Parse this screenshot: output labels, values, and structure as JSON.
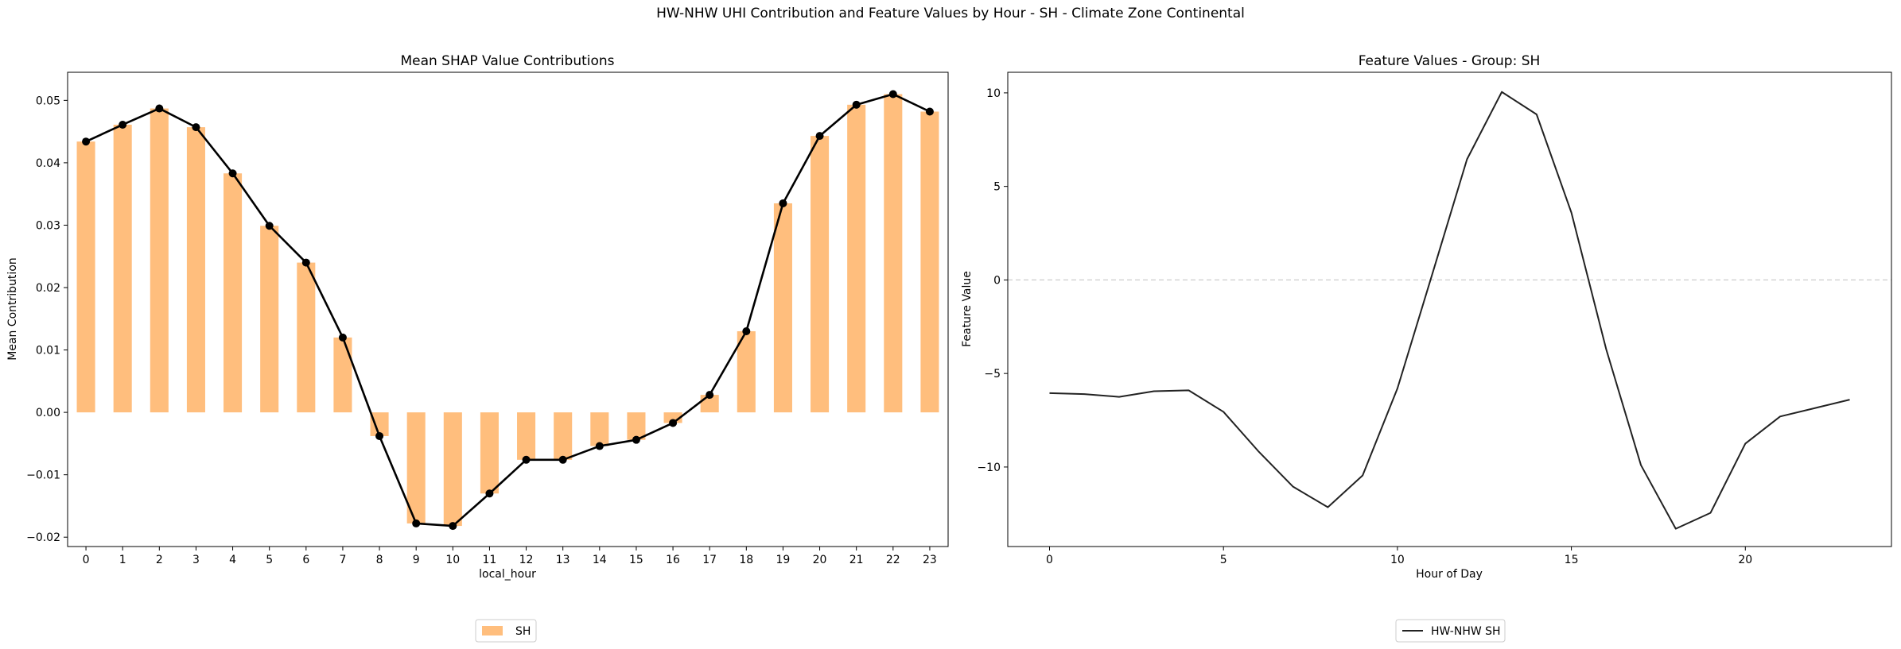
{
  "figure": {
    "suptitle": "HW-NHW UHI Contribution and Feature Values by Hour - SH - Climate Zone Continental"
  },
  "chart_data": [
    {
      "type": "bar",
      "title": "Mean SHAP Value Contributions",
      "xlabel": "local_hour",
      "ylabel": "Mean Contribution",
      "categories": [
        "0",
        "1",
        "2",
        "3",
        "4",
        "5",
        "6",
        "7",
        "8",
        "9",
        "10",
        "11",
        "12",
        "13",
        "14",
        "15",
        "16",
        "17",
        "18",
        "19",
        "20",
        "21",
        "22",
        "23"
      ],
      "series": [
        {
          "name": "SH",
          "color": "#ffbe7d",
          "values": [
            0.0434,
            0.0461,
            0.0487,
            0.0457,
            0.0383,
            0.0299,
            0.024,
            0.012,
            -0.0038,
            -0.0178,
            -0.0182,
            -0.013,
            -0.0076,
            -0.0076,
            -0.0054,
            -0.0044,
            -0.0017,
            0.0028,
            0.013,
            0.0335,
            0.0443,
            0.0493,
            0.051,
            0.0482
          ]
        }
      ],
      "overlay_line": {
        "type": "line",
        "color": "#000000",
        "marker": "circle",
        "values": [
          0.0434,
          0.0461,
          0.0487,
          0.0457,
          0.0383,
          0.0299,
          0.024,
          0.012,
          -0.0038,
          -0.0178,
          -0.0182,
          -0.013,
          -0.0076,
          -0.0076,
          -0.0054,
          -0.0044,
          -0.0017,
          0.0028,
          0.013,
          0.0335,
          0.0443,
          0.0493,
          0.051,
          0.0482
        ]
      },
      "ylim": [
        -0.0215,
        0.0545
      ],
      "yticks": [
        -0.02,
        -0.01,
        0.0,
        0.01,
        0.02,
        0.03,
        0.04,
        0.05
      ],
      "ytick_labels": [
        "−0.02",
        "−0.01",
        "0.00",
        "0.01",
        "0.02",
        "0.03",
        "0.04",
        "0.05"
      ],
      "legend": {
        "placement": "below",
        "labels": [
          "SH"
        ]
      }
    },
    {
      "type": "line",
      "title": "Feature Values - Group: SH",
      "xlabel": "Hour of Day",
      "ylabel": "Feature Value",
      "x": [
        0,
        1,
        2,
        3,
        4,
        5,
        6,
        7,
        8,
        9,
        10,
        11,
        12,
        13,
        14,
        15,
        16,
        17,
        18,
        19,
        20,
        21,
        22,
        23
      ],
      "series": [
        {
          "name": "HW-NHW SH",
          "color": "#222222",
          "values": [
            -6.05,
            -6.1,
            -6.25,
            -5.95,
            -5.9,
            -7.05,
            -9.15,
            -11.05,
            -12.15,
            -10.45,
            -5.8,
            0.3,
            6.45,
            10.05,
            8.85,
            3.6,
            -3.7,
            -9.9,
            -13.3,
            -12.45,
            -8.75,
            -7.3,
            -6.85,
            -6.4
          ]
        }
      ],
      "xlim": [
        -1.2,
        24.2
      ],
      "ylim": [
        -14.25,
        11.1
      ],
      "xticks": [
        0,
        5,
        10,
        15,
        20
      ],
      "xtick_labels": [
        "0",
        "5",
        "10",
        "15",
        "20"
      ],
      "yticks": [
        -10,
        -5,
        0,
        5,
        10
      ],
      "ytick_labels": [
        "−10",
        "−5",
        "0",
        "5",
        "10"
      ],
      "reference_line": {
        "y": 0,
        "style": "dashed",
        "color": "#cccccc"
      },
      "legend": {
        "placement": "below",
        "labels": [
          "HW-NHW SH"
        ]
      }
    }
  ]
}
